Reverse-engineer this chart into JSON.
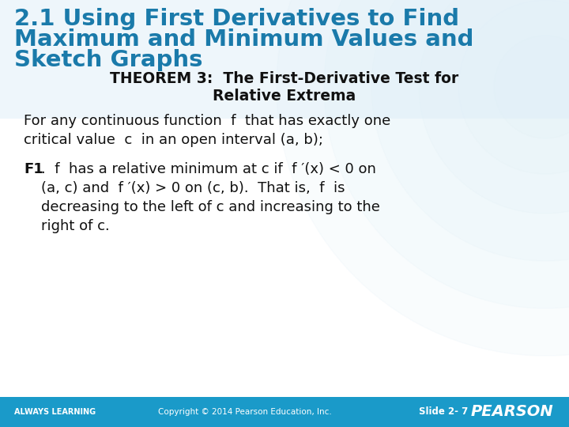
{
  "title_line1": "2.1 Using First Derivatives to Find",
  "title_line2": "Maximum and Minimum Values and",
  "title_line3": "Sketch Graphs",
  "title_color": "#1a7aaa",
  "theorem_line1": "THEOREM 3:  The First-Derivative Test for",
  "theorem_line2": "Relative Extrema",
  "body_text1_line1": "For any continuous function  f  that has exactly one",
  "body_text1_line2": "critical value  c  in an open interval (a, b);",
  "f1_label": "F1",
  "f1_text1": ".  f  has a relative minimum at c if  f ′(x) < 0 on",
  "f1_text2": "(a, c) and  f ′(x) > 0 on (c, b).  That is,  f  is",
  "f1_text3": "decreasing to the left of c and increasing to the",
  "f1_text4": "right of c.",
  "footer_left": "ALWAYS LEARNING",
  "footer_center": "Copyright © 2014 Pearson Education, Inc.",
  "footer_right": "Slide 2- 7",
  "footer_brand": "PEARSON",
  "footer_bg": "#1a9ac9",
  "footer_text_color": "#ffffff",
  "bg_color": "#ffffff",
  "watermark_color": "#cce6f4"
}
